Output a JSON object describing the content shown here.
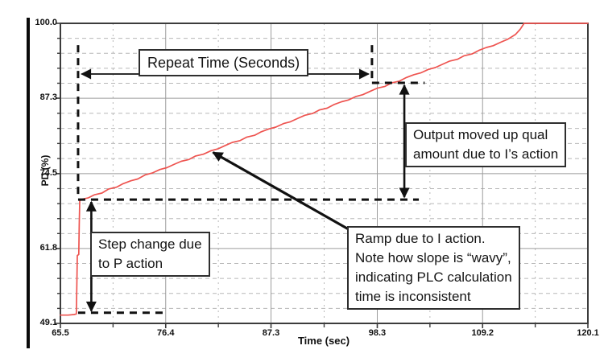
{
  "chart_data": {
    "type": "line",
    "xlabel": "Time (sec)",
    "ylabel": "PD (%)",
    "xlim": [
      65.5,
      120.1
    ],
    "ylim": [
      49.1,
      100.0
    ],
    "x_ticks": [
      {
        "v": 65.5,
        "label": "65.5"
      },
      {
        "v": 76.4,
        "label": "76.4"
      },
      {
        "v": 87.3,
        "label": "87.3"
      },
      {
        "v": 98.3,
        "label": "98.3"
      },
      {
        "v": 109.2,
        "label": "109.2"
      },
      {
        "v": 120.1,
        "label": "120.1"
      }
    ],
    "y_ticks": [
      {
        "v": 100.0,
        "label": "100.0"
      },
      {
        "v": 87.3,
        "label": "87.3"
      },
      {
        "v": 74.5,
        "label": "74.5"
      },
      {
        "v": 61.8,
        "label": "61.8"
      },
      {
        "v": 49.1,
        "label": "49.1"
      }
    ],
    "y_minor_divisions": 5,
    "x_minor_divisions": 2,
    "grid": {
      "major_color": "#9c9c9c",
      "minor_color": "#b8b8b8",
      "frame_color": "#3c3c3c"
    },
    "annotation_color": "#111111",
    "series": [
      {
        "name": "controller-output",
        "color": "#ee5450",
        "points": [
          [
            65.5,
            50.5
          ],
          [
            66.3,
            50.5
          ],
          [
            66.9,
            50.6
          ],
          [
            67.15,
            50.7
          ],
          [
            67.2,
            55.5
          ],
          [
            67.25,
            60.6
          ],
          [
            67.4,
            60.8
          ],
          [
            67.45,
            66.0
          ],
          [
            67.5,
            69.9
          ],
          [
            67.8,
            70.2
          ],
          [
            68.4,
            70.4
          ],
          [
            69.0,
            70.9
          ],
          [
            69.8,
            71.2
          ],
          [
            70.5,
            71.9
          ],
          [
            71.3,
            72.2
          ],
          [
            72.0,
            72.8
          ],
          [
            72.8,
            73.3
          ],
          [
            73.5,
            73.6
          ],
          [
            74.3,
            74.3
          ],
          [
            75.0,
            74.6
          ],
          [
            75.8,
            75.2
          ],
          [
            76.5,
            75.5
          ],
          [
            77.3,
            76.1
          ],
          [
            78.0,
            76.6
          ],
          [
            78.8,
            76.9
          ],
          [
            79.5,
            77.5
          ],
          [
            80.3,
            77.8
          ],
          [
            81.1,
            78.4
          ],
          [
            81.8,
            78.7
          ],
          [
            82.6,
            79.3
          ],
          [
            83.3,
            79.8
          ],
          [
            84.1,
            80.1
          ],
          [
            84.8,
            80.7
          ],
          [
            85.6,
            81.0
          ],
          [
            86.3,
            81.6
          ],
          [
            87.1,
            82.1
          ],
          [
            87.8,
            82.4
          ],
          [
            88.6,
            83.0
          ],
          [
            89.3,
            83.3
          ],
          [
            90.1,
            83.9
          ],
          [
            90.8,
            84.4
          ],
          [
            91.6,
            84.7
          ],
          [
            92.3,
            85.3
          ],
          [
            93.1,
            85.6
          ],
          [
            93.8,
            86.2
          ],
          [
            94.6,
            86.7
          ],
          [
            95.3,
            87.0
          ],
          [
            96.1,
            87.6
          ],
          [
            96.8,
            87.9
          ],
          [
            97.6,
            88.5
          ],
          [
            98.3,
            89.0
          ],
          [
            99.1,
            89.3
          ],
          [
            99.8,
            89.9
          ],
          [
            100.6,
            90.2
          ],
          [
            101.3,
            90.8
          ],
          [
            102.1,
            91.3
          ],
          [
            102.8,
            91.6
          ],
          [
            103.6,
            92.2
          ],
          [
            104.3,
            92.5
          ],
          [
            105.1,
            93.1
          ],
          [
            105.8,
            93.6
          ],
          [
            106.6,
            93.9
          ],
          [
            107.3,
            94.5
          ],
          [
            108.1,
            94.8
          ],
          [
            108.8,
            95.4
          ],
          [
            109.6,
            95.9
          ],
          [
            110.3,
            96.2
          ],
          [
            111.1,
            96.8
          ],
          [
            111.8,
            97.3
          ],
          [
            112.6,
            98.1
          ],
          [
            113.1,
            99.0
          ],
          [
            113.5,
            100.0
          ],
          [
            120.1,
            100.0
          ]
        ]
      }
    ],
    "annotations": {
      "boxes": {
        "repeat_time": {
          "lines": [
            "Repeat Time (Seconds)"
          ]
        },
        "step_change": {
          "lines": [
            "Step change due",
            "to P action"
          ]
        },
        "output_moved": {
          "lines": [
            "Output moved up qual",
            "amount due to I’s action"
          ]
        },
        "ramp": {
          "lines": [
            "Ramp due to I action.",
            "Note how slope is “wavy”,",
            "indicating PLC calculation",
            "time is inconsistent"
          ]
        }
      },
      "dashed_lines": [
        {
          "name": "left-repeat-marker",
          "x1": 67.33,
          "y1": 96.3,
          "x2": 67.33,
          "y2": 70.1
        },
        {
          "name": "right-repeat-marker",
          "x1": 97.75,
          "y1": 96.3,
          "x2": 97.75,
          "y2": 89.9
        },
        {
          "name": "upper-output-level",
          "x1": 97.75,
          "y1": 89.9,
          "x2": 103.2,
          "y2": 89.9
        },
        {
          "name": "step-top-level",
          "x1": 67.33,
          "y1": 70.1,
          "x2": 102.6,
          "y2": 70.1
        },
        {
          "name": "step-bottom-level",
          "x1": 67.33,
          "y1": 50.9,
          "x2": 76.1,
          "y2": 50.9
        }
      ],
      "arrows": [
        {
          "name": "repeat-time-span",
          "x1": 67.7,
          "y1": 91.4,
          "x2": 97.4,
          "y2": 91.4,
          "double": true,
          "width": 1.7
        },
        {
          "name": "step-change-span",
          "x1": 68.7,
          "y1": 51.2,
          "x2": 68.7,
          "y2": 69.7,
          "double": true,
          "width": 2.6
        },
        {
          "name": "integral-move-span",
          "x1": 101.1,
          "y1": 70.5,
          "x2": 101.1,
          "y2": 89.5,
          "double": true,
          "width": 2.6
        },
        {
          "name": "ramp-pointer",
          "x1": 95.4,
          "y1": 65.0,
          "x2": 81.3,
          "y2": 78.1,
          "double": false,
          "width": 3.2
        }
      ]
    }
  }
}
